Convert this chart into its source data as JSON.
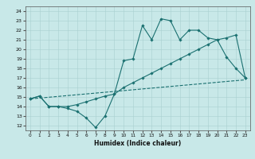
{
  "xlabel": "Humidex (Indice chaleur)",
  "bg_color": "#c8e8e8",
  "line_color": "#1a7070",
  "xlim": [
    -0.5,
    23.5
  ],
  "ylim": [
    11.5,
    24.5
  ],
  "xticks": [
    0,
    1,
    2,
    3,
    4,
    5,
    6,
    7,
    8,
    9,
    10,
    11,
    12,
    13,
    14,
    15,
    16,
    17,
    18,
    19,
    20,
    21,
    22,
    23
  ],
  "yticks": [
    12,
    13,
    14,
    15,
    16,
    17,
    18,
    19,
    20,
    21,
    22,
    23,
    24
  ],
  "line1_x": [
    0,
    1,
    2,
    3,
    4,
    5,
    6,
    7,
    8,
    9,
    10,
    11,
    12,
    13,
    14,
    15,
    16,
    17,
    18,
    19,
    20,
    21,
    22,
    23
  ],
  "line1_y": [
    14.8,
    15.1,
    14.0,
    14.0,
    13.8,
    13.5,
    12.8,
    11.8,
    13.0,
    15.3,
    18.8,
    19.0,
    22.5,
    21.0,
    23.2,
    23.0,
    21.0,
    22.0,
    22.0,
    21.2,
    21.0,
    19.2,
    18.0,
    17.0
  ],
  "line2_x": [
    0,
    1,
    2,
    3,
    4,
    5,
    6,
    7,
    8,
    9,
    10,
    11,
    12,
    13,
    14,
    15,
    16,
    17,
    18,
    19,
    20,
    21,
    22,
    23
  ],
  "line2_y": [
    14.8,
    15.1,
    14.0,
    14.0,
    14.0,
    14.2,
    14.5,
    14.8,
    15.1,
    15.3,
    16.0,
    16.5,
    17.0,
    17.5,
    18.0,
    18.5,
    19.0,
    19.5,
    20.0,
    20.5,
    21.0,
    21.2,
    21.5,
    17.0
  ],
  "line3_x": [
    0,
    23
  ],
  "line3_y": [
    14.8,
    16.8
  ]
}
